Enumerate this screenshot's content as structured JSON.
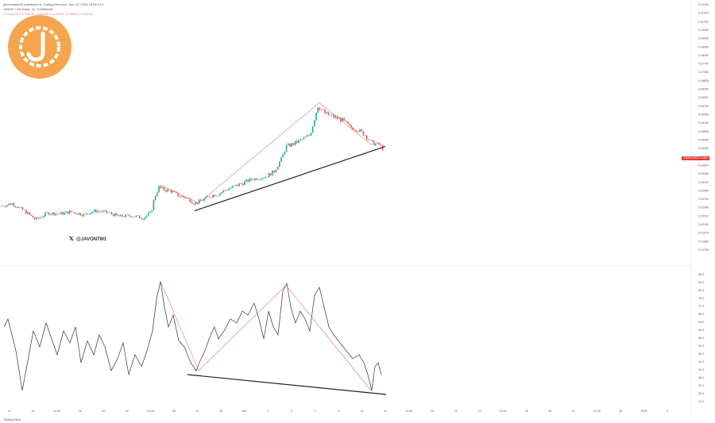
{
  "header": {
    "author_line": "javonmartin93 published on TradingView.com, Dec 10, 2024 18:56 UTC",
    "symbol_line": "JASMY / US Dollar, 2h, COINBASE",
    "ohlc_line": "O 0.03178 H 0.03178 L 0.03150 C 0.03150 −0.00029 (−0.91%)"
  },
  "watermark": {
    "handle": "@JAVONTM1",
    "icon": "x-logo-icon"
  },
  "logo": {
    "icon": "jasmy-coin-icon",
    "color": "#f4a54e"
  },
  "price_badge": {
    "label": "JASMY/USD",
    "value": "0.03150"
  },
  "footer": {
    "brand": "TradingView"
  },
  "colors": {
    "up": "#26a69a",
    "down": "#ef5350",
    "pattern_line": "#e57373",
    "trend_line": "#222222",
    "oscillator": "#333333"
  },
  "chart_data": [
    {
      "type": "candlestick",
      "title": "JASMY / US Dollar, 2h, COINBASE",
      "ylim": [
        0.0172,
        0.1245
      ],
      "y_ticks": [
        0.1224,
        0.119,
        0.11,
        0.1,
        0.095,
        0.09,
        0.083,
        0.077,
        0.073,
        0.068,
        0.063,
        0.059,
        0.057,
        0.054,
        0.051,
        0.048,
        0.045,
        0.042,
        0.039,
        0.0362,
        0.0335,
        0.031,
        0.029,
        0.027,
        0.025,
        0.0231,
        0.0213,
        0.0197,
        0.0186,
        0.01765
      ],
      "series": [
        {
          "name": "JASMY/USD close",
          "x": [
            0,
            15,
            30,
            45,
            60,
            75,
            90,
            105,
            120,
            135,
            150,
            165,
            180,
            190,
            195,
            200,
            205,
            215,
            225,
            235,
            245,
            255,
            265,
            275,
            285,
            295,
            305,
            315,
            325,
            335,
            345,
            355,
            360,
            370,
            380,
            390,
            395,
            400,
            405,
            410,
            420,
            430,
            440,
            450,
            460,
            467,
            472,
            478,
            482
          ],
          "values": [
            0.0255,
            0.0262,
            0.0245,
            0.0225,
            0.024,
            0.0238,
            0.0243,
            0.0236,
            0.0245,
            0.0241,
            0.0232,
            0.0234,
            0.0229,
            0.024,
            0.028,
            0.03,
            0.0295,
            0.0292,
            0.028,
            0.0275,
            0.0262,
            0.027,
            0.028,
            0.0285,
            0.0295,
            0.0302,
            0.031,
            0.032,
            0.0325,
            0.033,
            0.0345,
            0.039,
            0.043,
            0.044,
            0.0455,
            0.047,
            0.052,
            0.0575,
            0.056,
            0.0545,
            0.0535,
            0.0525,
            0.05,
            0.049,
            0.047,
            0.0445,
            0.044,
            0.0435,
            0.042
          ]
        }
      ],
      "annotations": [
        {
          "kind": "pattern",
          "points": [
            [
              202,
              0.0305
            ],
            [
              250,
              0.0263
            ],
            [
              402,
              0.058
            ],
            [
              468,
              0.0435
            ]
          ]
        },
        {
          "kind": "trend",
          "points": [
            [
              245,
              0.0245
            ],
            [
              485,
              0.043
            ]
          ]
        }
      ]
    },
    {
      "type": "line",
      "title": "",
      "ylim": [
        22,
        90
      ],
      "y_ticks": [
        88.0,
        84.0,
        80.0,
        76.0,
        72.0,
        68.0,
        64.0,
        60.0,
        56.0,
        52.0,
        48.0,
        44.0,
        40.0,
        36.0,
        32.0,
        28.0,
        24.0
      ],
      "x_tick_labels": [
        "12",
        "13",
        "12:00",
        "18",
        "20",
        "22",
        "12:00",
        "25",
        "27",
        "29",
        "Dec",
        "3",
        "5",
        "7",
        "9",
        "11",
        "13",
        "12:00",
        "15",
        "19",
        "21",
        "12:00",
        "23",
        "25",
        "27",
        "12:00",
        "30",
        "2025",
        "3"
      ],
      "series": [
        {
          "name": "",
          "x": [
            5,
            10,
            15,
            20,
            28,
            35,
            42,
            50,
            58,
            65,
            72,
            80,
            88,
            95,
            102,
            110,
            118,
            125,
            132,
            140,
            148,
            155,
            162,
            170,
            178,
            185,
            192,
            197,
            202,
            207,
            212,
            218,
            225,
            232,
            240,
            247,
            252,
            258,
            265,
            270,
            275,
            282,
            290,
            298,
            305,
            312,
            320,
            326,
            332,
            338,
            344,
            350,
            356,
            361,
            366,
            372,
            378,
            384,
            390,
            396,
            402,
            408,
            414,
            420,
            428,
            436,
            444,
            452,
            458,
            463,
            468,
            472,
            476,
            480
          ],
          "values": [
            62,
            66,
            58,
            50,
            30,
            45,
            60,
            52,
            64,
            56,
            48,
            60,
            54,
            62,
            44,
            55,
            48,
            58,
            52,
            40,
            46,
            54,
            38,
            48,
            42,
            50,
            60,
            76,
            85,
            72,
            62,
            68,
            55,
            52,
            44,
            40,
            45,
            50,
            58,
            62,
            56,
            60,
            66,
            64,
            70,
            68,
            74,
            66,
            56,
            70,
            62,
            58,
            80,
            84,
            72,
            64,
            70,
            66,
            60,
            78,
            82,
            72,
            62,
            58,
            54,
            50,
            46,
            48,
            44,
            38,
            30,
            42,
            44,
            38
          ]
        }
      ],
      "annotations": [
        {
          "kind": "pattern",
          "points": [
            [
              202,
              85
            ],
            [
              250,
              40
            ],
            [
              360,
              83
            ],
            [
              467,
              30
            ]
          ]
        },
        {
          "kind": "trend",
          "points": [
            [
              236,
              38
            ],
            [
              486,
              28
            ]
          ]
        }
      ]
    }
  ]
}
